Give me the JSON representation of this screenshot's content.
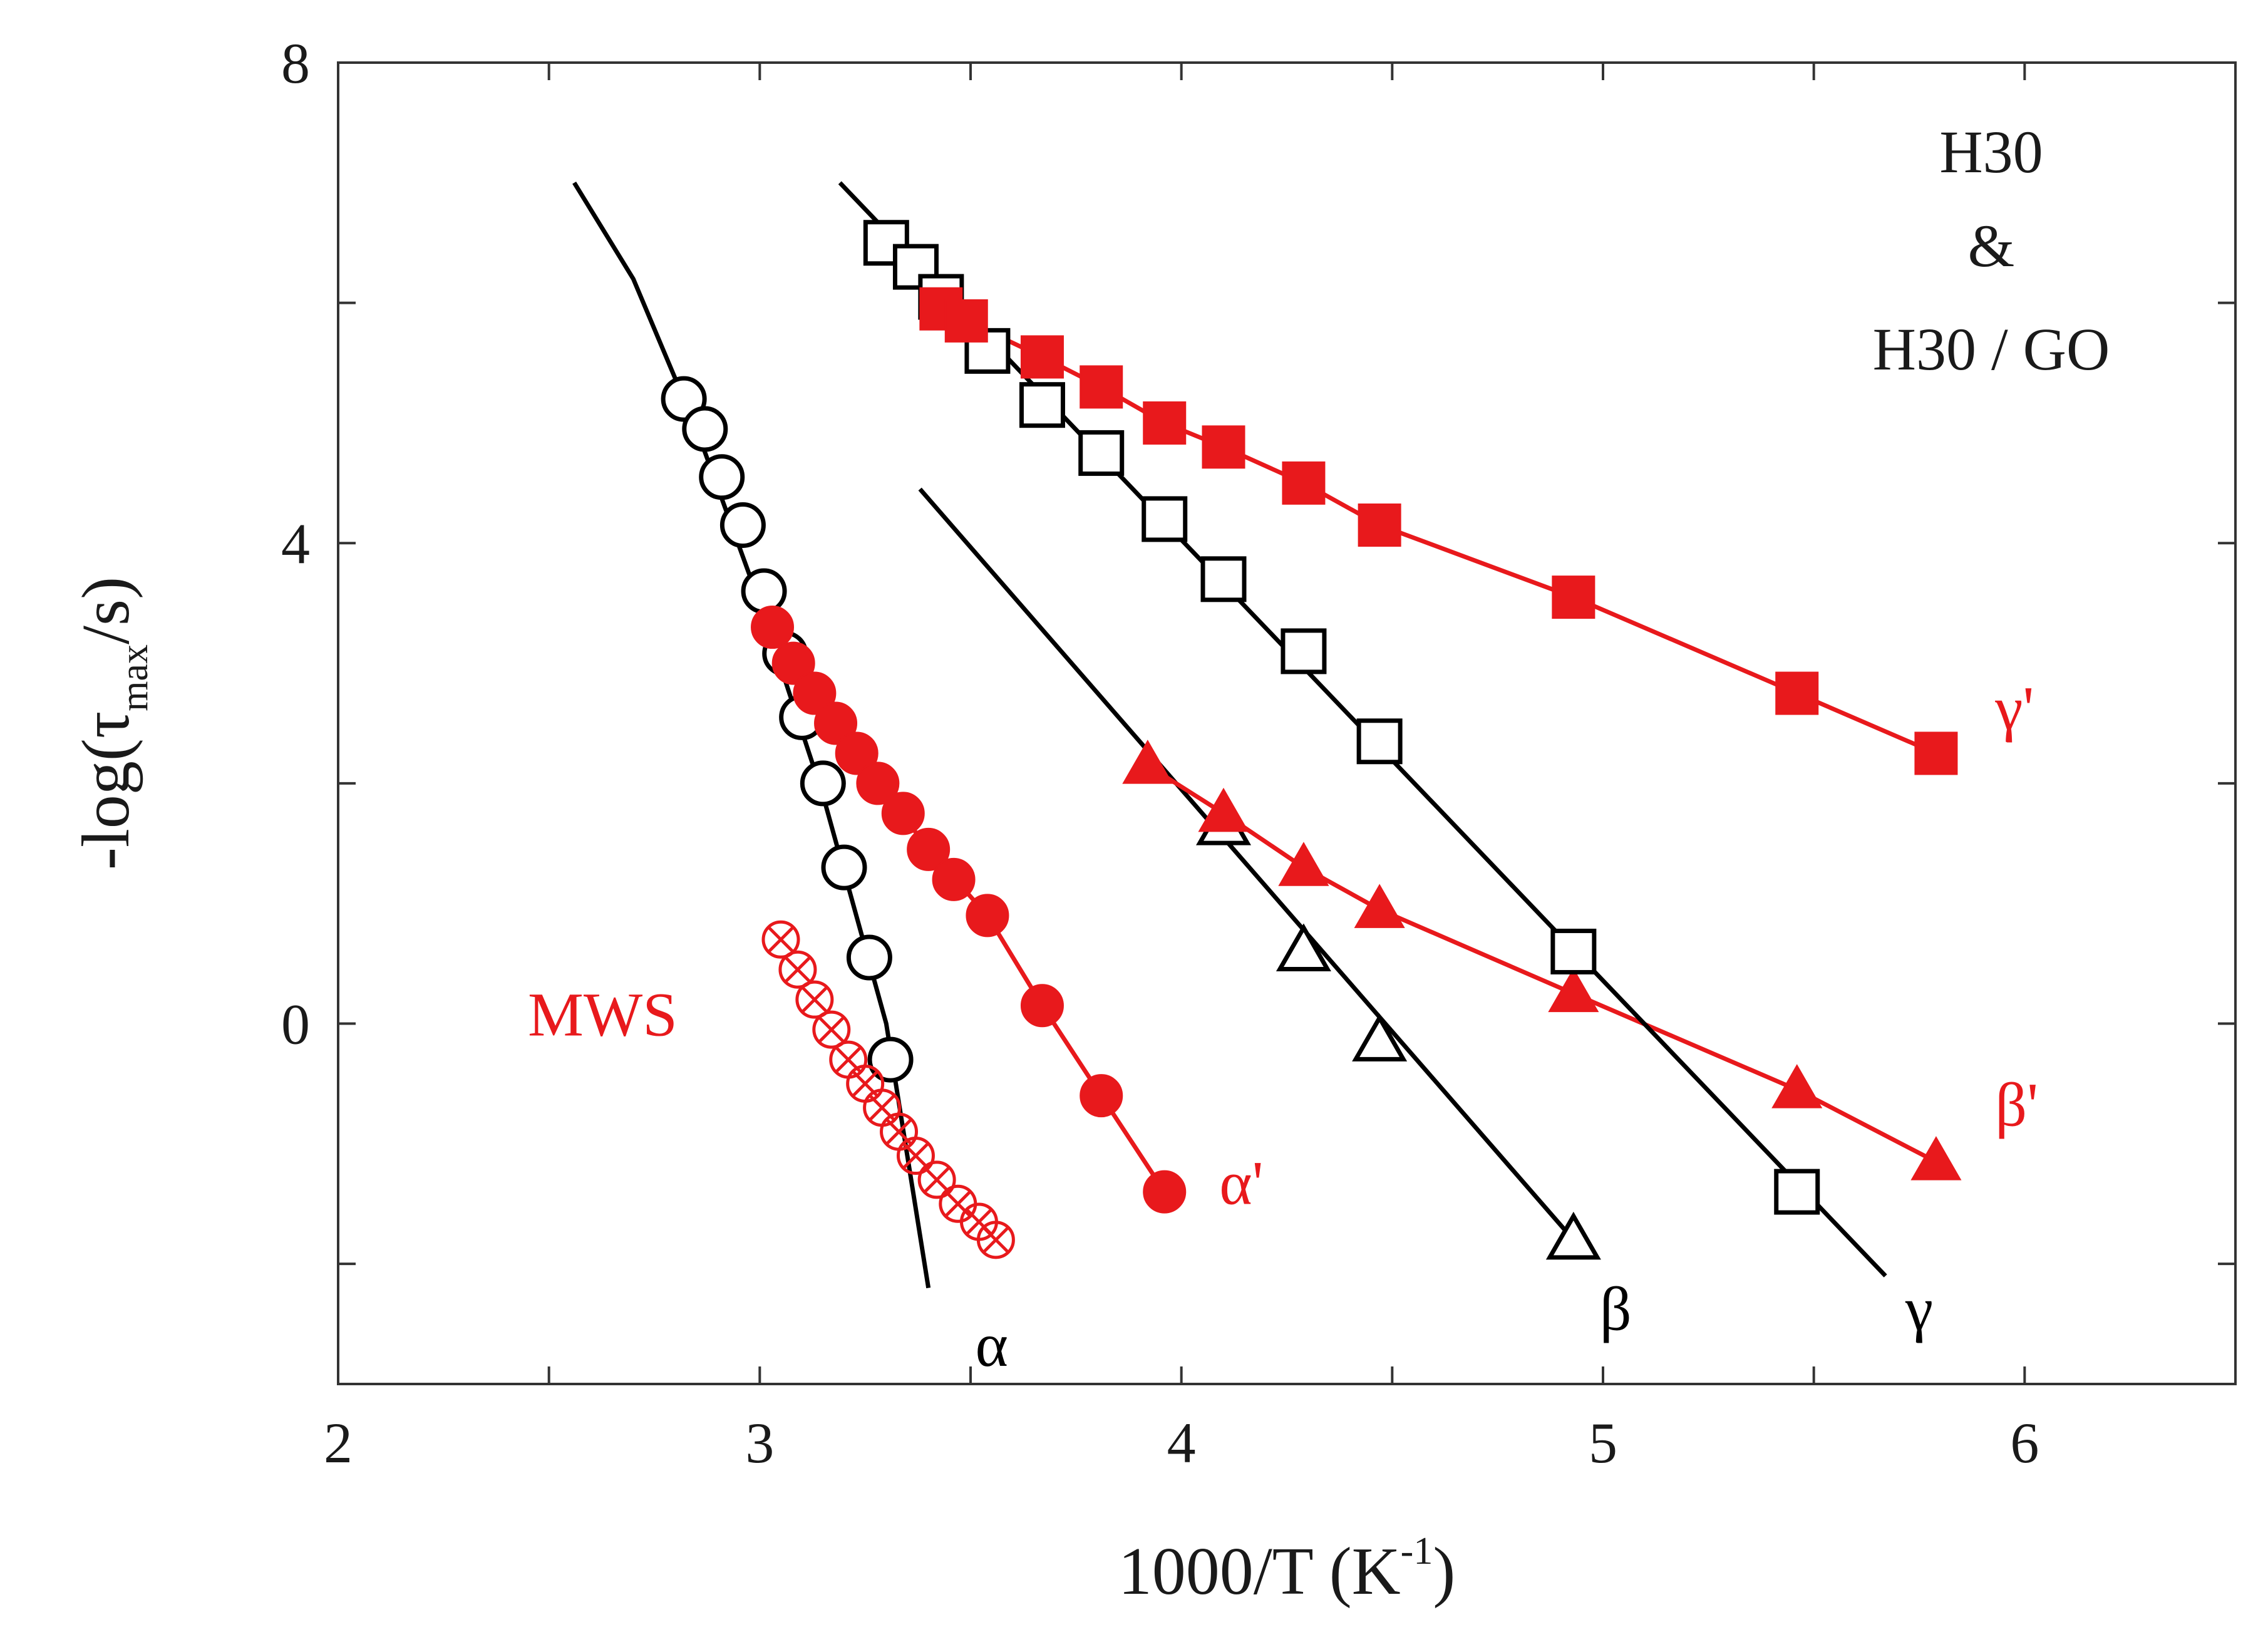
{
  "chart_data": {
    "type": "scatter",
    "title": "",
    "xlabel": "1000/T (K",
    "xlabel_sup": "-1",
    "xlabel_end": ")",
    "ylabel": "-log(τ",
    "ylabel_sub": "max",
    "ylabel_end": "/s)",
    "xlim": [
      2,
      6.5
    ],
    "ylim": [
      -3,
      8
    ],
    "xticks": [
      2,
      3,
      4,
      5,
      6
    ],
    "yticks": [
      0,
      4,
      8
    ],
    "xtick_labels": [
      "2",
      "3",
      "4",
      "5",
      "6"
    ],
    "ytick_labels": [
      "0",
      "4",
      "8"
    ],
    "grid": false,
    "legend": {
      "position": "top-right",
      "lines": [
        "H30",
        "&",
        "H30 / GO"
      ]
    },
    "colors": {
      "black": "#000000",
      "red": "#e8191c"
    },
    "series": [
      {
        "name": "α",
        "label": "α",
        "color": "#000000",
        "marker": "circle-open",
        "x": [
          2.82,
          2.87,
          2.91,
          2.96,
          3.01,
          3.06,
          3.1,
          3.15,
          3.2,
          3.26,
          3.31
        ],
        "y": [
          5.2,
          4.95,
          4.55,
          4.15,
          3.6,
          3.08,
          2.55,
          2.0,
          1.3,
          0.55,
          -0.3
        ],
        "fit": {
          "x": [
            2.56,
            2.7,
            2.85,
            3.0,
            3.15,
            3.3,
            3.4
          ],
          "y": [
            7.0,
            6.2,
            4.95,
            3.5,
            1.9,
            0.0,
            -2.2
          ]
        }
      },
      {
        "name": "α'",
        "label": "α'",
        "color": "#e8191c",
        "marker": "circle-filled",
        "x": [
          3.03,
          3.08,
          3.13,
          3.18,
          3.23,
          3.28,
          3.34,
          3.4,
          3.46,
          3.54,
          3.67,
          3.81,
          3.96
        ],
        "y": [
          3.3,
          3.0,
          2.75,
          2.5,
          2.25,
          2.0,
          1.75,
          1.45,
          1.2,
          0.9,
          0.15,
          -0.6,
          -1.4
        ],
        "fit": {
          "x": [
            3.03,
            3.2,
            3.4,
            3.54,
            3.67,
            3.81,
            3.96
          ],
          "y": [
            3.3,
            2.4,
            1.45,
            0.9,
            0.15,
            -0.6,
            -1.4
          ]
        }
      },
      {
        "name": "MWS",
        "label": "MWS",
        "color": "#e8191c",
        "marker": "crossed-circle",
        "x": [
          3.05,
          3.09,
          3.13,
          3.17,
          3.21,
          3.25,
          3.29,
          3.33,
          3.37,
          3.42,
          3.47,
          3.52,
          3.56
        ],
        "y": [
          0.7,
          0.45,
          0.2,
          -0.05,
          -0.3,
          -0.5,
          -0.7,
          -0.9,
          -1.1,
          -1.3,
          -1.5,
          -1.65,
          -1.8
        ],
        "fit": null
      },
      {
        "name": "β",
        "label": "β",
        "color": "#000000",
        "marker": "triangle-open",
        "x": [
          4.1,
          4.29,
          4.47,
          4.93
        ],
        "y": [
          1.65,
          0.6,
          -0.15,
          -1.8
        ],
        "fit": {
          "x": [
            3.38,
            4.93
          ],
          "y": [
            4.45,
            -1.8
          ]
        }
      },
      {
        "name": "β'",
        "label": "β'",
        "color": "#e8191c",
        "marker": "triangle-filled",
        "x": [
          3.92,
          4.1,
          4.29,
          4.47,
          4.93,
          5.46,
          5.79
        ],
        "y": [
          2.15,
          1.75,
          1.3,
          0.95,
          0.25,
          -0.55,
          -1.15
        ],
        "fit": {
          "x": [
            3.92,
            4.1,
            4.29,
            4.47,
            4.93,
            5.46,
            5.79
          ],
          "y": [
            2.15,
            1.75,
            1.3,
            0.95,
            0.25,
            -0.55,
            -1.15
          ]
        }
      },
      {
        "name": "γ",
        "label": "γ",
        "color": "#000000",
        "marker": "square-open",
        "x": [
          3.3,
          3.37,
          3.43,
          3.54,
          3.67,
          3.81,
          3.96,
          4.1,
          4.29,
          4.47,
          4.93,
          5.46
        ],
        "y": [
          6.5,
          6.3,
          6.05,
          5.6,
          5.15,
          4.75,
          4.2,
          3.7,
          3.1,
          2.35,
          0.6,
          -1.4
        ],
        "fit": {
          "x": [
            3.19,
            5.67
          ],
          "y": [
            7.0,
            -2.1
          ]
        }
      },
      {
        "name": "γ'",
        "label": "γ'",
        "color": "#e8191c",
        "marker": "square-filled",
        "x": [
          3.43,
          3.49,
          3.67,
          3.81,
          3.96,
          4.1,
          4.29,
          4.47,
          4.93,
          5.46,
          5.79
        ],
        "y": [
          5.95,
          5.85,
          5.55,
          5.3,
          5.0,
          4.8,
          4.5,
          4.15,
          3.55,
          2.75,
          2.25
        ],
        "fit": {
          "x": [
            3.43,
            3.49,
            3.67,
            3.81,
            3.96,
            4.1,
            4.29,
            4.47,
            4.93,
            5.46,
            5.79
          ],
          "y": [
            5.95,
            5.85,
            5.55,
            5.3,
            5.0,
            4.8,
            4.5,
            4.15,
            3.55,
            2.75,
            2.25
          ]
        }
      }
    ]
  }
}
